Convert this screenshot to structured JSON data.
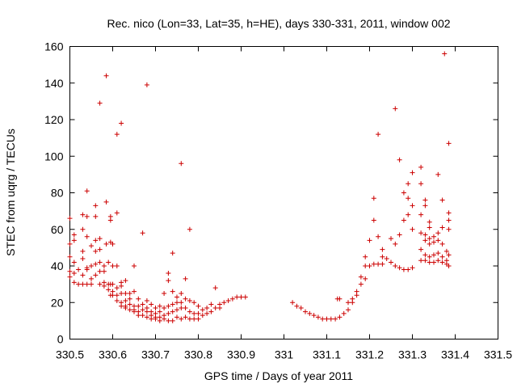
{
  "chart_data": {
    "type": "scatter",
    "title": "Rec. nico (Lon=33, Lat=35, h=HE), days 330-331, 2011, window 002",
    "xlabel": "GPS time / Days of year 2011",
    "ylabel": "STEC from uqrg / TECUs",
    "xlim": [
      330.5,
      331.5
    ],
    "ylim": [
      0,
      160
    ],
    "xticks": [
      330.5,
      330.6,
      330.7,
      330.8,
      330.9,
      331,
      331.1,
      331.2,
      331.3,
      331.4,
      331.5
    ],
    "xtick_labels": [
      "330.5",
      "330.6",
      "330.7",
      "330.8",
      "330.9",
      "331",
      "331.1",
      "331.2",
      "331.3",
      "331.4",
      "331.5"
    ],
    "yticks": [
      0,
      20,
      40,
      60,
      80,
      100,
      120,
      140,
      160
    ],
    "ytick_labels": [
      "0",
      "20",
      "40",
      "60",
      "80",
      "100",
      "120",
      "140",
      "160"
    ],
    "marker": "plus",
    "color": "#cc0000",
    "grid": false,
    "points": [
      [
        330.5,
        66
      ],
      [
        330.5,
        52
      ],
      [
        330.5,
        45
      ],
      [
        330.5,
        37
      ],
      [
        330.5,
        34
      ],
      [
        330.51,
        57
      ],
      [
        330.51,
        54
      ],
      [
        330.51,
        42
      ],
      [
        330.51,
        36
      ],
      [
        330.51,
        31
      ],
      [
        330.52,
        38
      ],
      [
        330.52,
        30
      ],
      [
        330.53,
        68
      ],
      [
        330.53,
        60
      ],
      [
        330.53,
        48
      ],
      [
        330.53,
        44
      ],
      [
        330.53,
        35
      ],
      [
        330.53,
        30
      ],
      [
        330.54,
        81
      ],
      [
        330.54,
        67
      ],
      [
        330.54,
        56
      ],
      [
        330.54,
        39
      ],
      [
        330.54,
        38
      ],
      [
        330.54,
        30
      ],
      [
        330.55,
        51
      ],
      [
        330.55,
        40
      ],
      [
        330.55,
        33
      ],
      [
        330.55,
        30
      ],
      [
        330.56,
        73
      ],
      [
        330.56,
        67
      ],
      [
        330.56,
        54
      ],
      [
        330.56,
        48
      ],
      [
        330.56,
        41
      ],
      [
        330.56,
        35
      ],
      [
        330.57,
        129
      ],
      [
        330.57,
        55
      ],
      [
        330.57,
        49
      ],
      [
        330.57,
        42
      ],
      [
        330.57,
        37
      ],
      [
        330.57,
        30
      ],
      [
        330.58,
        40
      ],
      [
        330.58,
        37
      ],
      [
        330.58,
        31
      ],
      [
        330.58,
        29
      ],
      [
        330.585,
        144
      ],
      [
        330.585,
        75
      ],
      [
        330.585,
        52
      ],
      [
        330.59,
        42
      ],
      [
        330.59,
        30
      ],
      [
        330.59,
        27
      ],
      [
        330.595,
        67
      ],
      [
        330.595,
        65
      ],
      [
        330.595,
        53
      ],
      [
        330.595,
        30
      ],
      [
        330.595,
        24
      ],
      [
        330.6,
        52
      ],
      [
        330.6,
        40
      ],
      [
        330.6,
        30
      ],
      [
        330.6,
        26
      ],
      [
        330.6,
        24
      ],
      [
        330.61,
        112
      ],
      [
        330.61,
        69
      ],
      [
        330.61,
        40
      ],
      [
        330.61,
        28
      ],
      [
        330.61,
        24
      ],
      [
        330.61,
        21
      ],
      [
        330.62,
        118
      ],
      [
        330.62,
        31
      ],
      [
        330.62,
        29
      ],
      [
        330.62,
        25
      ],
      [
        330.62,
        20
      ],
      [
        330.62,
        18
      ],
      [
        330.63,
        32
      ],
      [
        330.63,
        25
      ],
      [
        330.63,
        21
      ],
      [
        330.63,
        18
      ],
      [
        330.63,
        17
      ],
      [
        330.64,
        25
      ],
      [
        330.64,
        22
      ],
      [
        330.64,
        19
      ],
      [
        330.64,
        16
      ],
      [
        330.65,
        40
      ],
      [
        330.65,
        26
      ],
      [
        330.65,
        18
      ],
      [
        330.65,
        16
      ],
      [
        330.65,
        15
      ],
      [
        330.66,
        22
      ],
      [
        330.66,
        18
      ],
      [
        330.66,
        15
      ],
      [
        330.66,
        13
      ],
      [
        330.67,
        58
      ],
      [
        330.67,
        19
      ],
      [
        330.67,
        16
      ],
      [
        330.67,
        13
      ],
      [
        330.68,
        139
      ],
      [
        330.68,
        21
      ],
      [
        330.68,
        17
      ],
      [
        330.68,
        15
      ],
      [
        330.68,
        12
      ],
      [
        330.69,
        19
      ],
      [
        330.69,
        15
      ],
      [
        330.69,
        13
      ],
      [
        330.69,
        11
      ],
      [
        330.7,
        17
      ],
      [
        330.7,
        14
      ],
      [
        330.7,
        12
      ],
      [
        330.7,
        11
      ],
      [
        330.71,
        18
      ],
      [
        330.71,
        15
      ],
      [
        330.71,
        12
      ],
      [
        330.71,
        10
      ],
      [
        330.72,
        25
      ],
      [
        330.72,
        17
      ],
      [
        330.72,
        13
      ],
      [
        330.72,
        11
      ],
      [
        330.73,
        36
      ],
      [
        330.73,
        32
      ],
      [
        330.73,
        18
      ],
      [
        330.73,
        14
      ],
      [
        330.73,
        10
      ],
      [
        330.74,
        47
      ],
      [
        330.74,
        26
      ],
      [
        330.74,
        19
      ],
      [
        330.74,
        15
      ],
      [
        330.74,
        10
      ],
      [
        330.75,
        23
      ],
      [
        330.75,
        20
      ],
      [
        330.75,
        16
      ],
      [
        330.75,
        12
      ],
      [
        330.76,
        96
      ],
      [
        330.76,
        25
      ],
      [
        330.76,
        20
      ],
      [
        330.76,
        17
      ],
      [
        330.76,
        11
      ],
      [
        330.77,
        33
      ],
      [
        330.77,
        22
      ],
      [
        330.77,
        17
      ],
      [
        330.77,
        12
      ],
      [
        330.78,
        60
      ],
      [
        330.78,
        21
      ],
      [
        330.78,
        15
      ],
      [
        330.78,
        11
      ],
      [
        330.79,
        20
      ],
      [
        330.79,
        14
      ],
      [
        330.79,
        11
      ],
      [
        330.8,
        18
      ],
      [
        330.8,
        14
      ],
      [
        330.8,
        11
      ],
      [
        330.81,
        16
      ],
      [
        330.81,
        13
      ],
      [
        330.82,
        17
      ],
      [
        330.82,
        14
      ],
      [
        330.83,
        19
      ],
      [
        330.83,
        15
      ],
      [
        330.84,
        28
      ],
      [
        330.84,
        17
      ],
      [
        330.85,
        19
      ],
      [
        330.85,
        17
      ],
      [
        330.86,
        20
      ],
      [
        330.87,
        21
      ],
      [
        330.88,
        22
      ],
      [
        330.89,
        23
      ],
      [
        330.9,
        23
      ],
      [
        330.91,
        23
      ],
      [
        331.02,
        20
      ],
      [
        331.03,
        18
      ],
      [
        331.04,
        17
      ],
      [
        331.05,
        15
      ],
      [
        331.06,
        14
      ],
      [
        331.07,
        13
      ],
      [
        331.08,
        12
      ],
      [
        331.09,
        11
      ],
      [
        331.1,
        11
      ],
      [
        331.11,
        11
      ],
      [
        331.12,
        11
      ],
      [
        331.125,
        22
      ],
      [
        331.13,
        22
      ],
      [
        331.13,
        12
      ],
      [
        331.14,
        14
      ],
      [
        331.15,
        20
      ],
      [
        331.15,
        16
      ],
      [
        331.16,
        22
      ],
      [
        331.16,
        20
      ],
      [
        331.17,
        26
      ],
      [
        331.17,
        24
      ],
      [
        331.18,
        34
      ],
      [
        331.18,
        30
      ],
      [
        331.19,
        45
      ],
      [
        331.19,
        40
      ],
      [
        331.19,
        33
      ],
      [
        331.2,
        54
      ],
      [
        331.2,
        40
      ],
      [
        331.21,
        77
      ],
      [
        331.21,
        65
      ],
      [
        331.21,
        41
      ],
      [
        331.22,
        112
      ],
      [
        331.22,
        56
      ],
      [
        331.22,
        41
      ],
      [
        331.23,
        49
      ],
      [
        331.23,
        45
      ],
      [
        331.23,
        41
      ],
      [
        331.24,
        44
      ],
      [
        331.25,
        55
      ],
      [
        331.25,
        42
      ],
      [
        331.26,
        126
      ],
      [
        331.26,
        52
      ],
      [
        331.26,
        40
      ],
      [
        331.27,
        98
      ],
      [
        331.27,
        57
      ],
      [
        331.27,
        39
      ],
      [
        331.28,
        80
      ],
      [
        331.28,
        65
      ],
      [
        331.28,
        38
      ],
      [
        331.29,
        85
      ],
      [
        331.29,
        77
      ],
      [
        331.29,
        68
      ],
      [
        331.29,
        38
      ],
      [
        331.3,
        91
      ],
      [
        331.3,
        73
      ],
      [
        331.3,
        60
      ],
      [
        331.3,
        39
      ],
      [
        331.32,
        94
      ],
      [
        331.32,
        85
      ],
      [
        331.32,
        68
      ],
      [
        331.32,
        58
      ],
      [
        331.32,
        49
      ],
      [
        331.32,
        43
      ],
      [
        331.33,
        76
      ],
      [
        331.33,
        73
      ],
      [
        331.33,
        57
      ],
      [
        331.33,
        54
      ],
      [
        331.33,
        46
      ],
      [
        331.33,
        43
      ],
      [
        331.34,
        64
      ],
      [
        331.34,
        61
      ],
      [
        331.34,
        55
      ],
      [
        331.34,
        52
      ],
      [
        331.34,
        45
      ],
      [
        331.34,
        42
      ],
      [
        331.35,
        56
      ],
      [
        331.35,
        53
      ],
      [
        331.35,
        46
      ],
      [
        331.35,
        42
      ],
      [
        331.36,
        90
      ],
      [
        331.36,
        58
      ],
      [
        331.36,
        54
      ],
      [
        331.36,
        47
      ],
      [
        331.36,
        43
      ],
      [
        331.37,
        76
      ],
      [
        331.37,
        61
      ],
      [
        331.37,
        52
      ],
      [
        331.37,
        45
      ],
      [
        331.37,
        42
      ],
      [
        331.375,
        156
      ],
      [
        331.38,
        48
      ],
      [
        331.38,
        43
      ],
      [
        331.38,
        41
      ],
      [
        331.385,
        107
      ],
      [
        331.385,
        69
      ],
      [
        331.385,
        65
      ],
      [
        331.385,
        60
      ],
      [
        331.385,
        46
      ],
      [
        331.385,
        40
      ]
    ]
  }
}
